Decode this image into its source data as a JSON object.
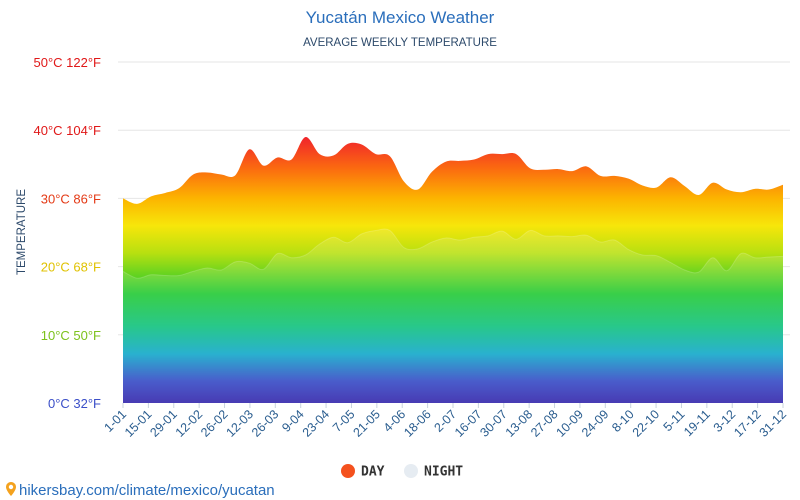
{
  "chart_data": {
    "type": "area",
    "title": "Yucatán Mexico Weather",
    "subtitle": "AVERAGE WEEKLY TEMPERATURE",
    "ylabel": "TEMPERATURE",
    "xlabel": "",
    "ylim": [
      0,
      50
    ],
    "grid": true,
    "legend_position": "bottom-center",
    "y_ticks": [
      {
        "value": 0,
        "label": "0°C 32°F",
        "color": "#3b4fc8"
      },
      {
        "value": 10,
        "label": "10°C 50°F",
        "color": "#7cc21c"
      },
      {
        "value": 20,
        "label": "20°C 68°F",
        "color": "#e0c200"
      },
      {
        "value": 30,
        "label": "30°C 86°F",
        "color": "#e43a16"
      },
      {
        "value": 40,
        "label": "40°C 104°F",
        "color": "#e01818"
      },
      {
        "value": 50,
        "label": "50°C 122°F",
        "color": "#e01818"
      }
    ],
    "x_tick_labels": [
      "1-01",
      "15-01",
      "29-01",
      "12-02",
      "26-02",
      "12-03",
      "26-03",
      "9-04",
      "23-04",
      "7-05",
      "21-05",
      "4-06",
      "18-06",
      "2-07",
      "16-07",
      "30-07",
      "13-08",
      "27-08",
      "10-09",
      "24-09",
      "8-10",
      "22-10",
      "5-11",
      "19-11",
      "3-12",
      "17-12",
      "31-12"
    ],
    "series": [
      {
        "name": "DAY",
        "color": "#f4511e",
        "values": [
          30,
          29.2,
          30.3,
          30.8,
          31.5,
          33.5,
          33.8,
          33.5,
          33.4,
          37.2,
          34.8,
          36,
          35.7,
          39,
          36.5,
          36.3,
          38,
          37.9,
          36.5,
          36.2,
          32.5,
          31.3,
          33.9,
          35.4,
          35.5,
          35.7,
          36.5,
          36.5,
          36.5,
          34.4,
          34.2,
          34.3,
          34.0,
          34.7,
          33.3,
          33.3,
          32.9,
          31.9,
          31.6,
          33.1,
          31.8,
          30.5,
          32.3,
          31.3,
          30.9,
          31.4,
          31.3,
          32.0
        ]
      },
      {
        "name": "NIGHT",
        "color": "#e6ecf2",
        "values": [
          19.3,
          18.3,
          18.8,
          18.7,
          18.7,
          19.3,
          19.8,
          19.5,
          20.7,
          20.5,
          19.6,
          21.9,
          21.3,
          21.7,
          23.3,
          24.3,
          23.5,
          24.8,
          25.3,
          25.3,
          22.8,
          22.6,
          23.6,
          24.2,
          23.9,
          24.3,
          24.5,
          25.2,
          24.0,
          25.3,
          24.5,
          24.5,
          24.4,
          24.6,
          23.6,
          23.9,
          22.5,
          21.7,
          21.6,
          20.6,
          19.5,
          19.2,
          21.3,
          19.4,
          21.9,
          21.3,
          21.4,
          21.5
        ]
      }
    ]
  },
  "footer": {
    "source_text": "hikersbay.com/climate/mexico/yucatan"
  }
}
